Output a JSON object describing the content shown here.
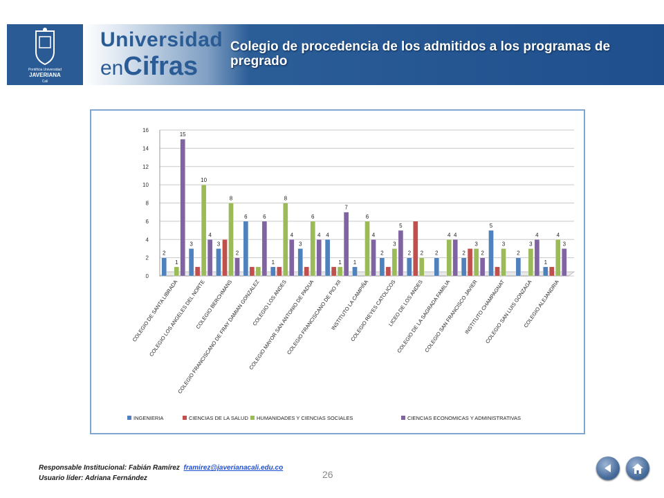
{
  "header": {
    "brand_line1": "Universidad",
    "brand_line2_prefix": "en",
    "brand_line2_main": "Cifras",
    "logo_text_line1": "Pontificia Universidad",
    "logo_text_line2": "JAVERIANA",
    "logo_text_line3": "Cali",
    "title": "Colegio de procedencia de los admitidos a los programas de pregrado"
  },
  "chart_data": {
    "type": "bar",
    "categories": [
      "COLEGIO DE SANTA LIBRADA",
      "COLEGIO LOS ANGELES DEL NORTE",
      "COLEGIO BERCHMANS",
      "COLEGIO FRANCISCANO DE FRAY DAMIAN GONZALEZ",
      "COLEGIO LOS ANDES",
      "COLEGIO MAYOR SAN ANTONIO DE PADUA",
      "COLEGIO FRANCISCANO DE PIO XII",
      "INSTITUTO LA CAMPIÑA",
      "COLEGIO REYES CATOLICOS",
      "LICEO DE LOS ANDES",
      "COLEGIO DE LA SAGRADA FAMILIA",
      "COLEGIO SAN FRANCISCO JAVIER",
      "INSTITUTO CHAMPAGNAT",
      "COLEGIO SAN LUIS GONZAGA",
      "COLEGIO ALEJANDRIA"
    ],
    "series": [
      {
        "name": "INGENIERIA",
        "color": "#4f81bd",
        "values": [
          2,
          3,
          3,
          6,
          1,
          3,
          4,
          1,
          2,
          2,
          2,
          2,
          5,
          2,
          1
        ]
      },
      {
        "name": "CIENCIAS DE LA SALUD",
        "color": "#c0504d",
        "values": [
          null,
          1,
          4,
          1,
          1,
          1,
          1,
          null,
          1,
          6,
          null,
          3,
          1,
          null,
          1
        ]
      },
      {
        "name": "HUMANIDADES Y CIENCIAS SOCIALES",
        "color": "#9bbb59",
        "values": [
          1,
          10,
          8,
          1,
          8,
          6,
          1,
          6,
          3,
          2,
          4,
          3,
          3,
          3,
          4
        ]
      },
      {
        "name": "CIENCIAS ECONOMICAS Y ADMINISTRATIVAS",
        "color": "#8064a2",
        "values": [
          15,
          4,
          2,
          6,
          4,
          4,
          7,
          4,
          5,
          null,
          4,
          2,
          null,
          4,
          3
        ]
      }
    ],
    "data_labels": [
      [
        "2",
        null,
        "1",
        "15"
      ],
      [
        "3",
        null,
        "10",
        "4"
      ],
      [
        "3",
        null,
        "8",
        "2"
      ],
      [
        "6",
        null,
        null,
        "6"
      ],
      [
        "1",
        null,
        "8",
        "4"
      ],
      [
        "3",
        null,
        "6",
        "4"
      ],
      [
        "4",
        null,
        "1",
        "7"
      ],
      [
        "1",
        null,
        "6",
        "4"
      ],
      [
        "2",
        null,
        "3",
        "5"
      ],
      [
        "2",
        null,
        "2",
        null
      ],
      [
        "2",
        null,
        "4",
        "4"
      ],
      [
        "2",
        null,
        "3",
        "2"
      ],
      [
        "5",
        null,
        "3",
        null
      ],
      [
        "2",
        null,
        "3",
        "4"
      ],
      [
        "1",
        null,
        "4",
        "3"
      ]
    ],
    "ylim": [
      0,
      16
    ],
    "yticks": [
      "0",
      "2",
      "4",
      "6",
      "8",
      "10",
      "12",
      "14",
      "16"
    ],
    "grid": true,
    "legend": "bottom"
  },
  "footer": {
    "responsable_label": "Responsable Institucional: Fabián Ramírez",
    "email": "framirez@javerianacali.edu.co",
    "usuario_label": "Usuario líder: Adriana Fernández",
    "page_number": "26",
    "back_icon": "back-arrow-icon",
    "home_icon": "home-icon"
  }
}
